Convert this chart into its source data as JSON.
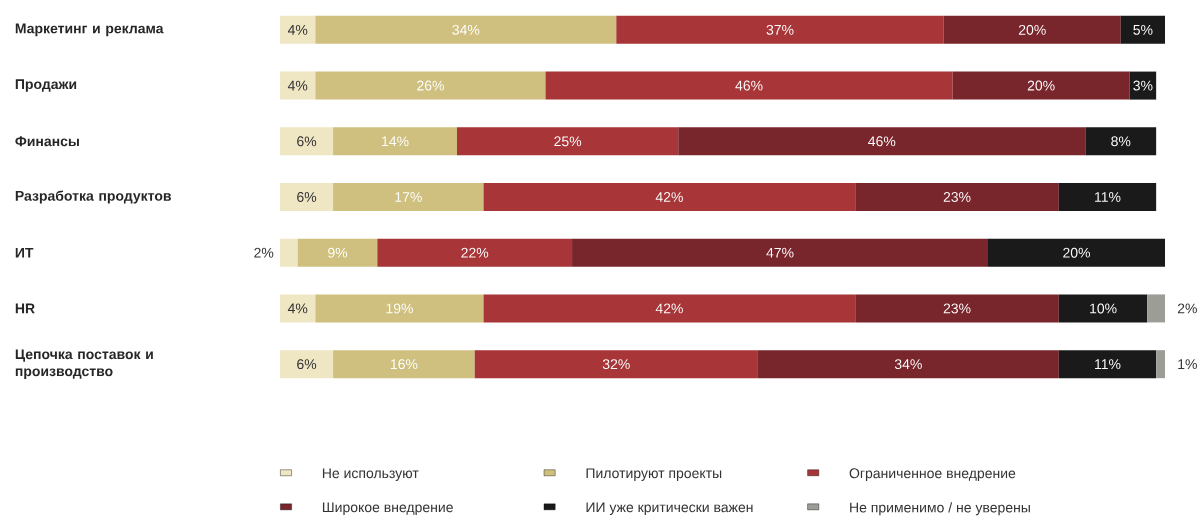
{
  "chart_data": {
    "type": "bar",
    "orientation": "horizontal",
    "stacked": true,
    "xlim": [
      0,
      100
    ],
    "tick_labels": "y",
    "legend": "bottom",
    "categories": [
      "Маркетинг и реклама",
      "Продажи",
      "Финансы",
      "Разработка продуктов",
      "ИТ",
      "HR",
      "Цепочка поставок и производство"
    ],
    "series": [
      {
        "name": "Не используют",
        "color": "#efe6c4",
        "values": [
          4,
          4,
          6,
          6,
          2,
          4,
          6
        ],
        "value_labels": [
          "4%",
          "4%",
          "6%",
          "6%",
          "2%",
          "4%",
          "6%"
        ]
      },
      {
        "name": "Пилотируют проекты",
        "color": "#cfc07f",
        "values": [
          34,
          26,
          14,
          17,
          9,
          19,
          16
        ],
        "value_labels": [
          "34%",
          "26%",
          "14%",
          "17%",
          "9%",
          "19%",
          "16%"
        ]
      },
      {
        "name": "Ограниченное внедрение",
        "color": "#a83537",
        "values": [
          37,
          46,
          25,
          42,
          22,
          42,
          32
        ],
        "value_labels": [
          "37%",
          "46%",
          "25%",
          "42%",
          "22%",
          "42%",
          "32%"
        ]
      },
      {
        "name": "Широкое внедрение",
        "color": "#79252c",
        "values": [
          20,
          20,
          46,
          23,
          47,
          23,
          34
        ],
        "value_labels": [
          "20%",
          "20%",
          "46%",
          "23%",
          "47%",
          "23%",
          "34%"
        ]
      },
      {
        "name": "ИИ уже критически важен",
        "color": "#1a1a1a",
        "values": [
          5,
          3,
          8,
          11,
          20,
          10,
          11
        ],
        "value_labels": [
          "5%",
          "3%",
          "8%",
          "11%",
          "20%",
          "10%",
          "11%"
        ]
      },
      {
        "name": "Не применимо / не уверены",
        "color": "#9d9d98",
        "values": [
          null,
          null,
          null,
          null,
          null,
          2,
          1
        ],
        "value_labels": [
          null,
          null,
          null,
          null,
          null,
          "2%",
          "1%"
        ]
      }
    ]
  }
}
